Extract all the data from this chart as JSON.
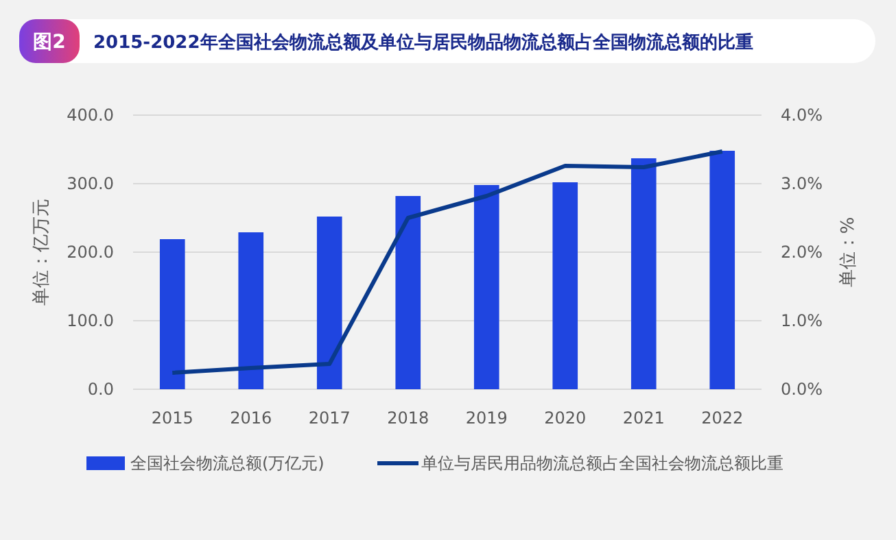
{
  "chart_data": {
    "type": "bar",
    "title": "2015-2022年全国社会物流总额及单位与居民物品物流总额占全国物流总额的比重",
    "annotations": [
      "图2"
    ],
    "ylabel": "单位：亿万元",
    "y2label": "单位：%",
    "categories": [
      "2015",
      "2016",
      "2017",
      "2018",
      "2019",
      "2020",
      "2021",
      "2022"
    ],
    "series": [
      {
        "name": "全国社会物流总额(万亿元)",
        "color": "#1f45e0",
        "values": [
          219,
          229,
          252,
          282,
          298,
          302,
          337,
          348
        ]
      },
      {
        "name": "单位与居民用品物流总额占全国社会物流总额比重",
        "type": "line",
        "axis": "y2",
        "color": "#0a3a8c",
        "values": [
          0.24,
          0.31,
          0.37,
          2.5,
          2.82,
          3.26,
          3.24,
          3.47
        ]
      }
    ],
    "ylim": [
      0,
      400
    ],
    "yticks": [
      {
        "value": 0,
        "label": "0.0"
      },
      {
        "value": 100,
        "label": "100.0"
      },
      {
        "value": 200,
        "label": "200.0"
      },
      {
        "value": 300,
        "label": "300.0"
      },
      {
        "value": 400,
        "label": "400.0"
      }
    ],
    "y2lim": [
      0,
      4
    ],
    "y2ticks": [
      {
        "value": 0,
        "label": "0.0%"
      },
      {
        "value": 1,
        "label": "1.0%"
      },
      {
        "value": 2,
        "label": "2.0%"
      },
      {
        "value": 3,
        "label": "3.0%"
      },
      {
        "value": 4,
        "label": "4.0%"
      }
    ],
    "grid": "y",
    "legend": "bottom",
    "marker": "none"
  }
}
